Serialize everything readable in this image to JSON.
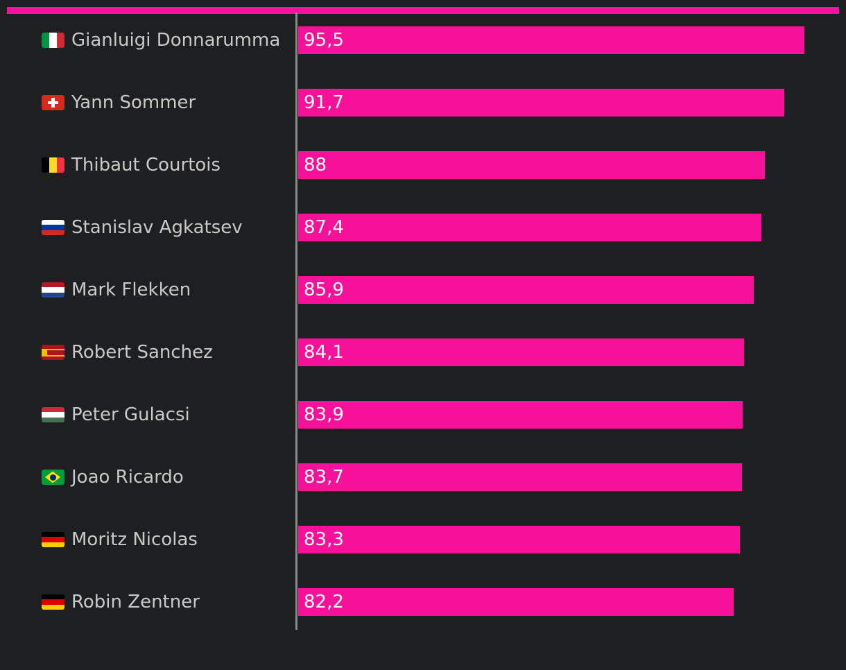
{
  "chart_data": {
    "type": "bar",
    "orientation": "horizontal",
    "title": "",
    "xlabel": "",
    "ylabel": "",
    "accent_color": "#f5119a",
    "background_color": "#1e1f21",
    "xlim": [
      0,
      95.5
    ],
    "categories": [
      "Gianluigi Donnarumma",
      "Yann Sommer",
      "Thibaut Courtois",
      "Stanislav Agkatsev",
      "Mark Flekken",
      "Robert Sanchez",
      "Peter Gulacsi",
      "Joao Ricardo",
      "Moritz Nicolas",
      "Robin Zentner"
    ],
    "flags": [
      "italy",
      "switzerland",
      "belgium",
      "russia",
      "netherlands",
      "spain",
      "hungary",
      "brazil",
      "germany",
      "germany"
    ],
    "values": [
      95.5,
      91.7,
      88,
      87.4,
      85.9,
      84.1,
      83.9,
      83.7,
      83.3,
      82.2
    ],
    "value_labels": [
      "95,5",
      "91,7",
      "88",
      "87,4",
      "85,9",
      "84,1",
      "83,9",
      "83,7",
      "83,3",
      "82,2"
    ]
  }
}
